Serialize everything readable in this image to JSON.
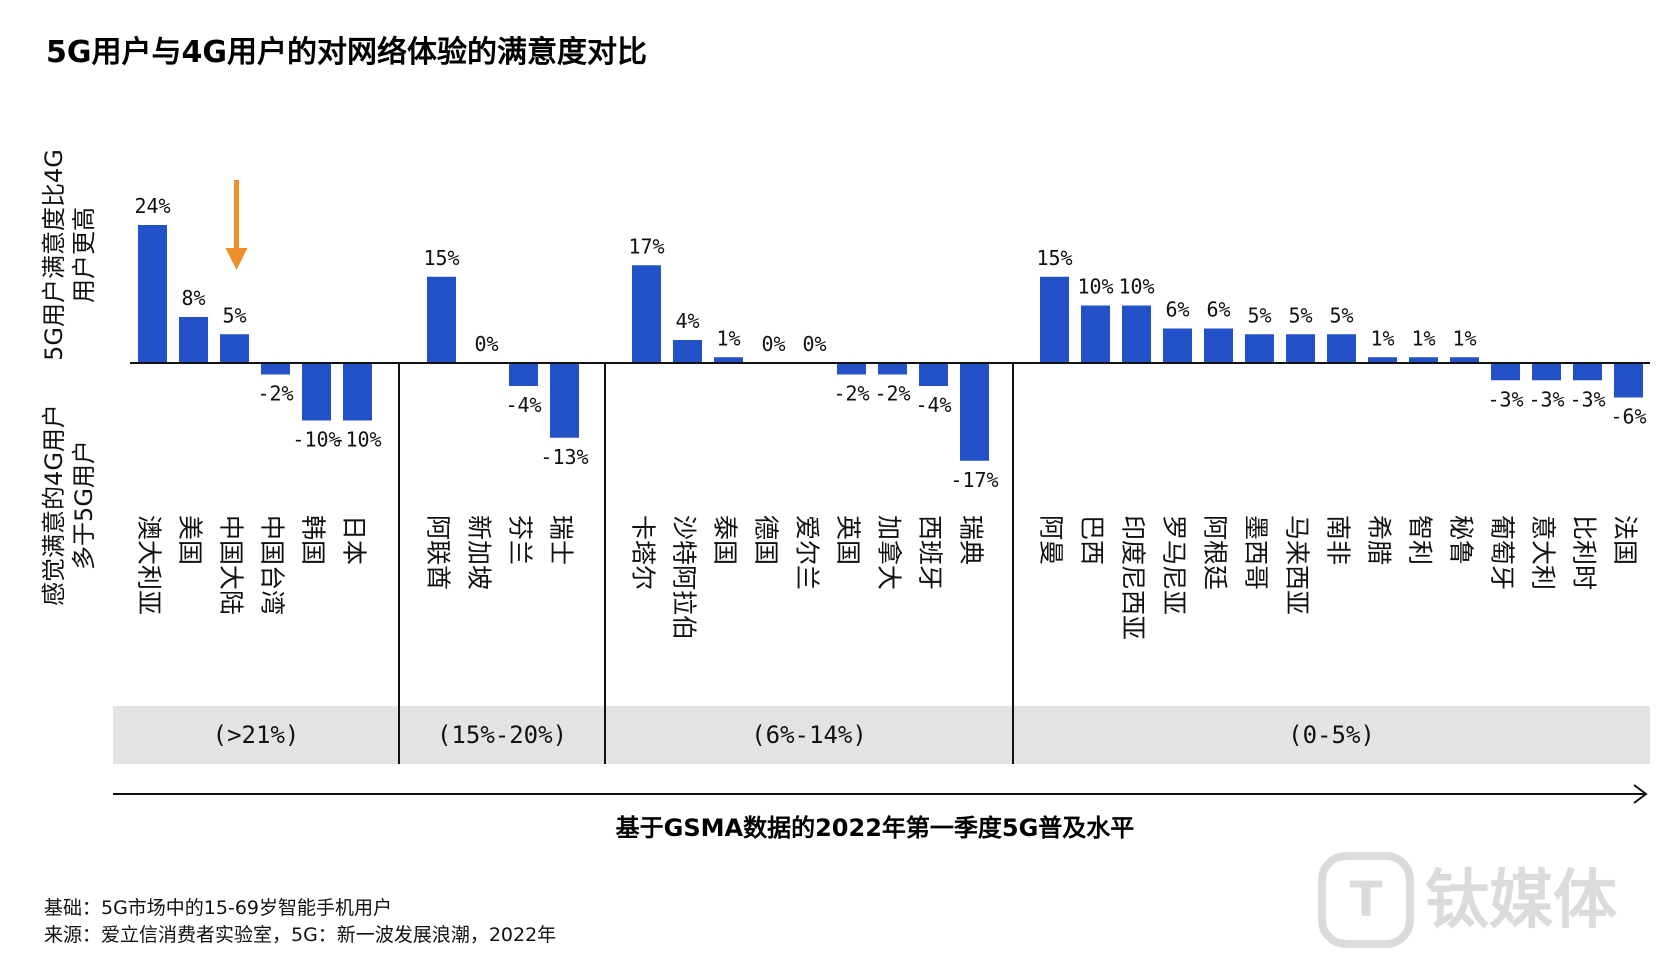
{
  "chart_data": {
    "type": "bar",
    "title": "5G用户与4G用户的对网络体验的满意度对比",
    "ylabel_positive": [
      "5G用户满意度比4G",
      "用户更高"
    ],
    "ylabel_negative": [
      "感觉满意的4G用户",
      "多于5G用户"
    ],
    "xlabel": "基于GSMA数据的2022年第一季度5G普及水平",
    "groups": [
      {
        "band": "(>21%)",
        "categories": [
          "澳大利亚",
          "美国",
          "中国大陆",
          "中国台湾",
          "韩国",
          "日本"
        ],
        "values": [
          24,
          8,
          5,
          -2,
          -10,
          -10
        ],
        "labels": [
          "24%",
          "8%",
          "5%",
          "-2%",
          "-10%",
          "-10%"
        ]
      },
      {
        "band": "(15%-20%)",
        "categories": [
          "阿联酋",
          "新加坡",
          "芬兰",
          "瑞士"
        ],
        "values": [
          15,
          0,
          -4,
          -13
        ],
        "labels": [
          "15%",
          "0%",
          "-4%",
          "-13%"
        ]
      },
      {
        "band": "(6%-14%)",
        "categories": [
          "卡塔尔",
          "沙特阿拉伯",
          "泰国",
          "德国",
          "爱尔兰",
          "英国",
          "加拿大",
          "西班牙",
          "瑞典"
        ],
        "values": [
          17,
          4,
          1,
          0,
          0,
          -2,
          -2,
          -4,
          -17
        ],
        "labels": [
          "17%",
          "4%",
          "1%",
          "0%",
          "0%",
          "-2%",
          "-2%",
          "-4%",
          "-17%"
        ]
      },
      {
        "band": "(0-5%)",
        "categories": [
          "阿曼",
          "巴西",
          "印度尼西亚",
          "罗马尼亚",
          "阿根廷",
          "墨西哥",
          "马来西亚",
          "南非",
          "希腊",
          "智利",
          "秘鲁",
          "葡萄牙",
          "意大利",
          "比利时",
          "法国"
        ],
        "values": [
          15,
          10,
          10,
          6,
          6,
          5,
          5,
          5,
          1,
          1,
          1,
          -3,
          -3,
          -3,
          -6
        ],
        "labels": [
          "15%",
          "10%",
          "10%",
          "6%",
          "6%",
          "5%",
          "5%",
          "5%",
          "1%",
          "1%",
          "1%",
          "-3%",
          "-3%",
          "-3%",
          "-6%"
        ]
      }
    ],
    "highlight": "中国大陆",
    "colors": {
      "bar": "#2251c8",
      "arrow": "#ef8f2a",
      "band_bg": "#e3e3e3",
      "axis": "#111111"
    }
  },
  "footer": {
    "basis": "基础：5G市场中的15-69岁智能手机用户",
    "source": "来源：爱立信消费者实验室，5G：新一波发展浪潮，2022年"
  },
  "watermark": "钛媒体"
}
